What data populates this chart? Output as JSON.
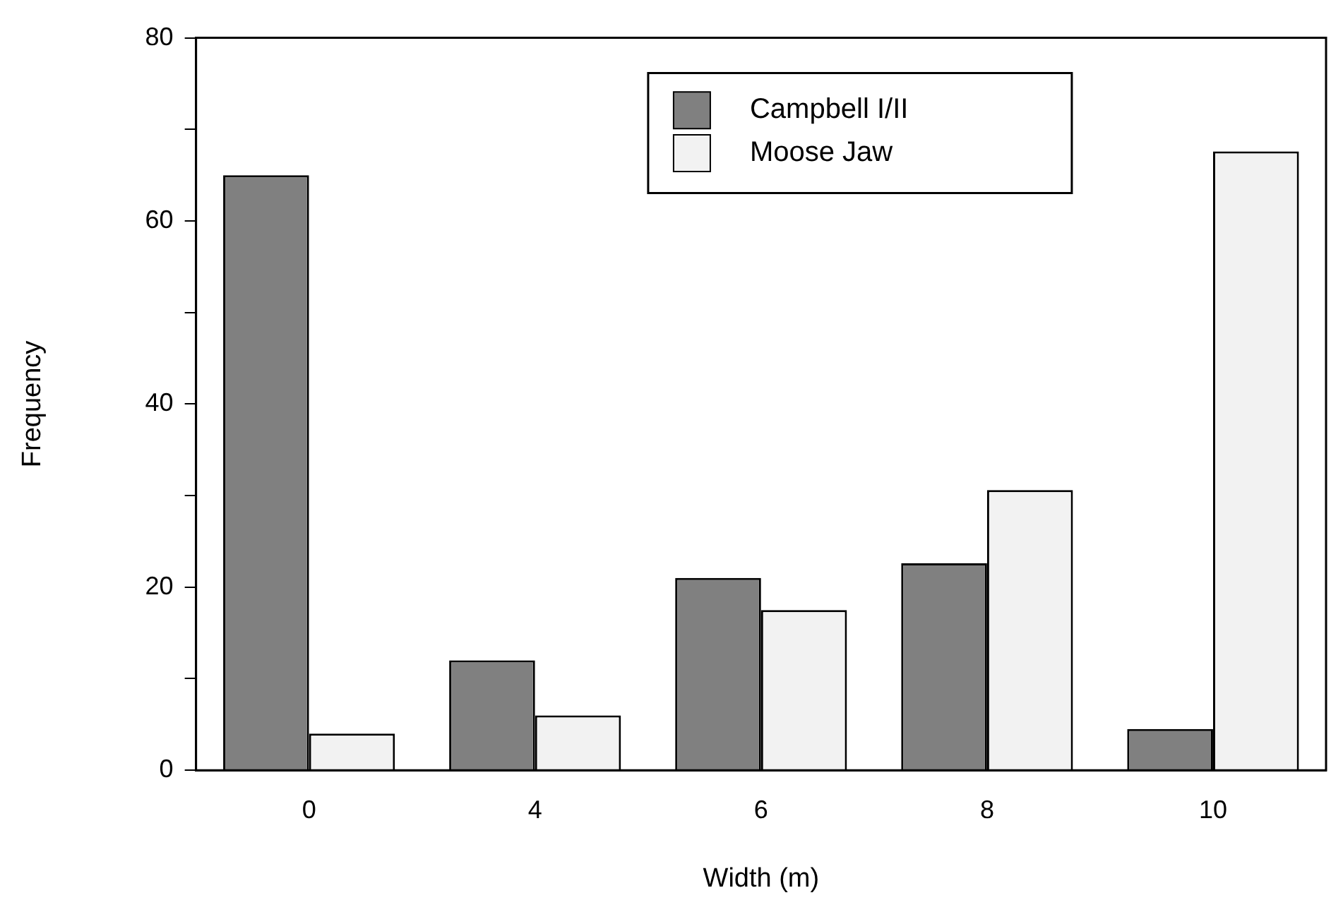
{
  "chart_data": {
    "type": "bar",
    "xlabel": "Width (m)",
    "ylabel": "Frequency",
    "categories": [
      "0",
      "4",
      "6",
      "8",
      "10"
    ],
    "series": [
      {
        "name": "Campbell I/II",
        "color": "#808080",
        "values": [
          65,
          12,
          21,
          22.6,
          4.5
        ]
      },
      {
        "name": "Moose Jaw",
        "color": "#f2f2f2",
        "values": [
          4,
          6,
          17.5,
          30.6,
          67.6
        ]
      }
    ],
    "ylim": [
      0,
      80
    ],
    "yticks": [
      0,
      {
        "value": 10,
        "label": null
      },
      20,
      {
        "value": 30,
        "label": null
      },
      40,
      {
        "value": 50,
        "label": null
      },
      60,
      {
        "value": 70,
        "label": null
      },
      80
    ],
    "grid": false,
    "legend": "top right"
  }
}
